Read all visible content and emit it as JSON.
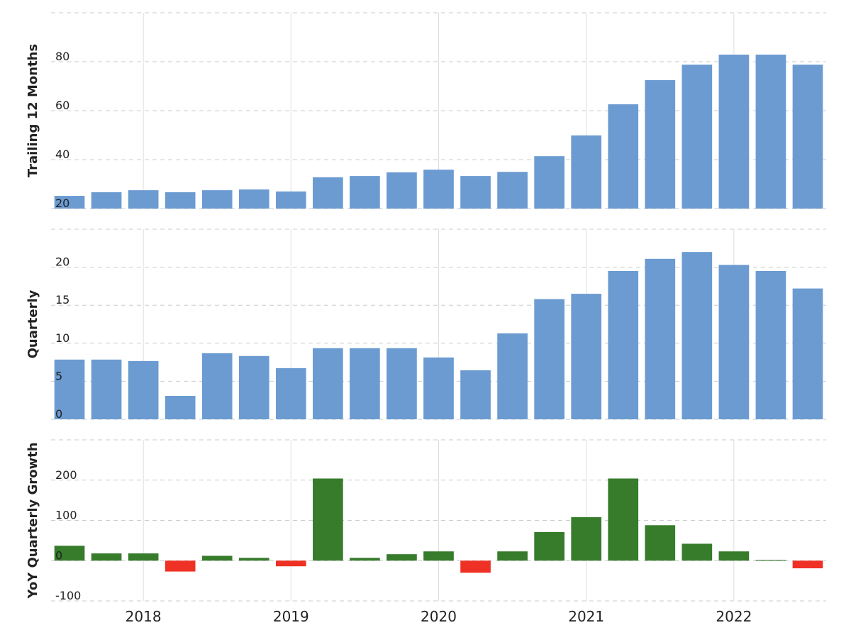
{
  "chart_data": [
    {
      "type": "bar",
      "y_label": "Trailing 12 Months",
      "color": "#6b9bd1",
      "values": [
        25.2,
        26.7,
        27.5,
        26.7,
        27.5,
        27.8,
        27.0,
        32.8,
        33.3,
        34.8,
        35.9,
        33.3,
        35.0,
        41.4,
        49.9,
        62.6,
        72.5,
        78.8,
        82.9,
        82.9,
        78.8
      ],
      "ylim": [
        20,
        100
      ],
      "yticks": [
        20,
        40,
        60,
        80
      ],
      "grid": true
    },
    {
      "type": "bar",
      "y_label": "Quarterly",
      "color": "#6b9bd1",
      "values": [
        7.85,
        7.85,
        7.66,
        3.08,
        8.69,
        8.32,
        6.73,
        9.35,
        9.35,
        9.35,
        8.13,
        6.45,
        11.3,
        15.8,
        16.5,
        19.5,
        21.1,
        22.0,
        20.3,
        19.5,
        17.2
      ],
      "ylim": [
        0,
        25
      ],
      "yticks": [
        0,
        5,
        10,
        15,
        20
      ],
      "grid": true
    },
    {
      "type": "signed-bar",
      "y_label": "YoY Quarterly Growth",
      "positive_color": "#367c2b",
      "negative_color": "#ee3124",
      "categories": [
        null,
        null,
        "2018",
        null,
        null,
        null,
        "2019",
        null,
        null,
        null,
        "2020",
        null,
        null,
        null,
        "2021",
        null,
        null,
        null,
        "2022",
        null,
        null
      ],
      "values": [
        37,
        18,
        18,
        -27,
        12,
        7,
        -14,
        204,
        7,
        16,
        23,
        -30,
        23,
        71,
        108,
        204,
        88,
        42,
        23,
        2,
        -19
      ],
      "ylim": [
        -100,
        300
      ],
      "yticks": [
        -100,
        0,
        100,
        200
      ],
      "grid": true
    }
  ]
}
